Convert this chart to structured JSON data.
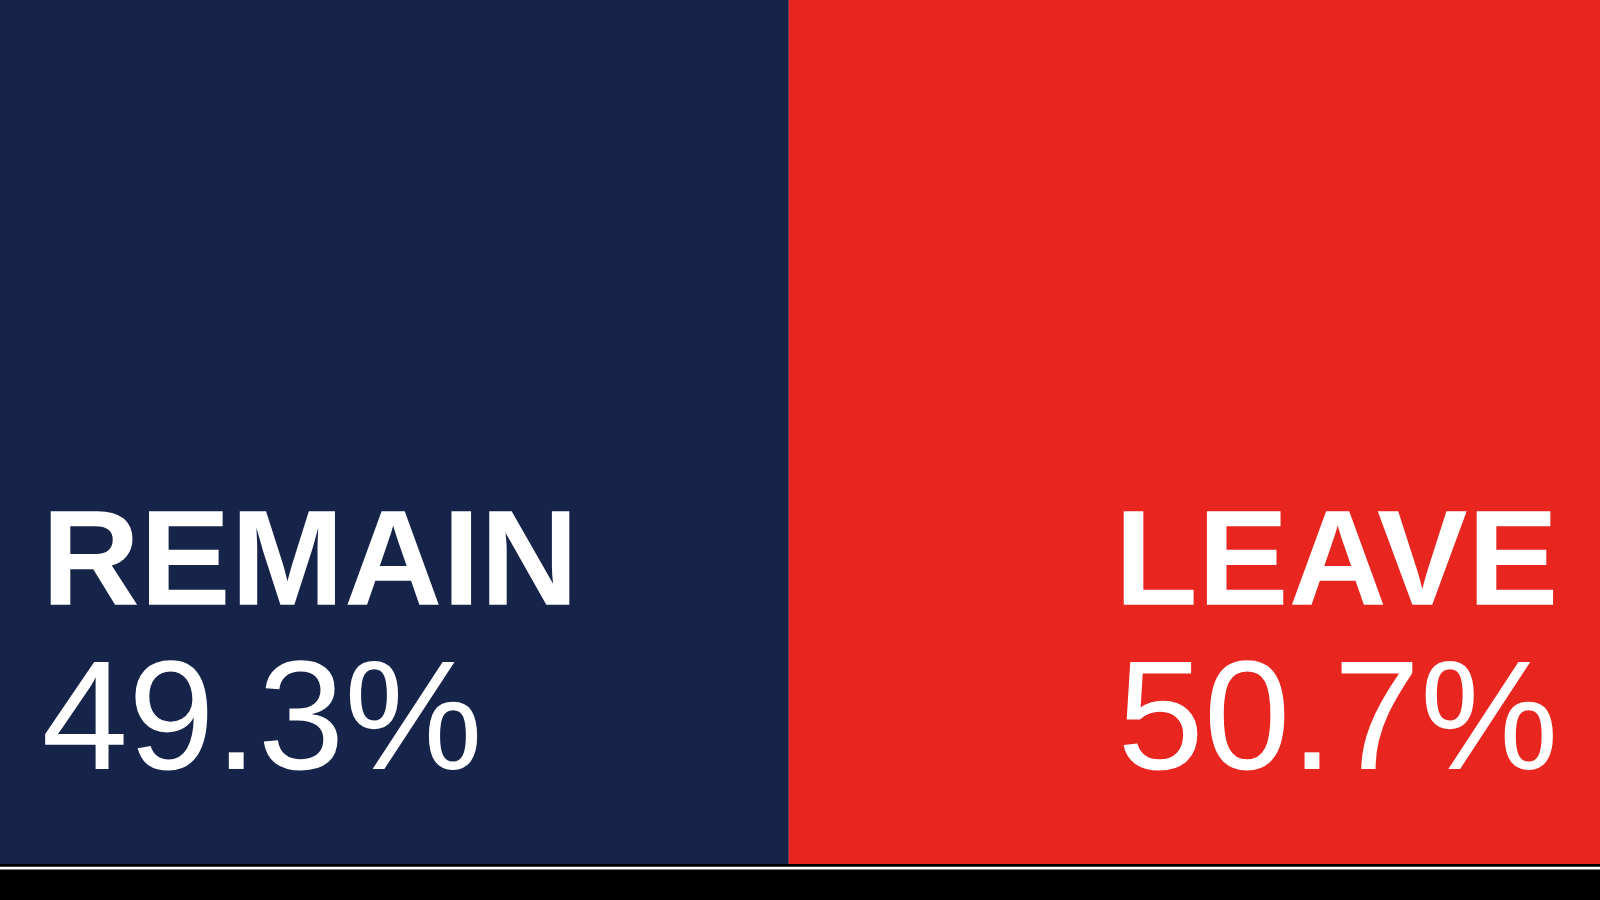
{
  "chart_data": {
    "type": "bar",
    "orientation": "horizontal",
    "stacked": true,
    "categories": [
      null
    ],
    "xlim": [
      0,
      100
    ],
    "legend": false,
    "series": [
      {
        "name": "REMAIN",
        "color": "#16244a",
        "values": [
          49.3
        ],
        "value_labels": [
          "49.3%"
        ]
      },
      {
        "name": "LEAVE",
        "color": "#e8251f",
        "values": [
          50.7
        ],
        "value_labels": [
          "50.7%"
        ]
      }
    ]
  }
}
